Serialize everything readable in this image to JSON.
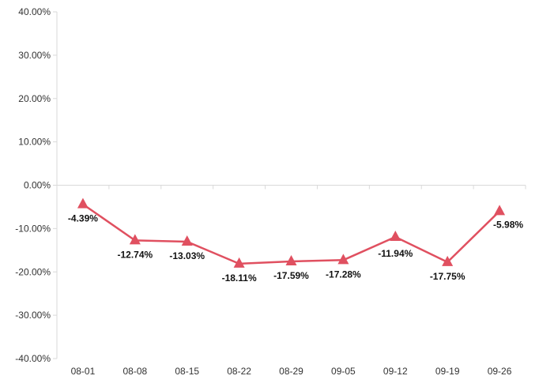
{
  "chart_data": {
    "type": "line",
    "categories": [
      "08-01",
      "08-08",
      "08-15",
      "08-22",
      "08-29",
      "09-05",
      "09-12",
      "09-19",
      "09-26"
    ],
    "series": [
      {
        "values": [
          -4.39,
          -12.74,
          -13.03,
          -18.11,
          -17.59,
          -17.28,
          -11.94,
          -17.75,
          -5.98
        ],
        "labels": [
          "-4.39%",
          "-12.74%",
          "-13.03%",
          "-18.11%",
          "-17.59%",
          "-17.28%",
          "-11.94%",
          "-17.75%",
          "-5.98%"
        ],
        "color": "#e05060",
        "marker": "triangle"
      }
    ],
    "y_ticks": [
      40,
      30,
      20,
      10,
      0,
      -10,
      -20,
      -30,
      -40
    ],
    "y_tick_labels": [
      "40.00%",
      "30.00%",
      "20.00%",
      "10.00%",
      "0.00%",
      "-10.00%",
      "-20.00%",
      "-30.00%",
      "-40.00%"
    ],
    "ylim": [
      -40,
      40
    ],
    "grid": false,
    "axis_color": "#d9d9d9"
  }
}
